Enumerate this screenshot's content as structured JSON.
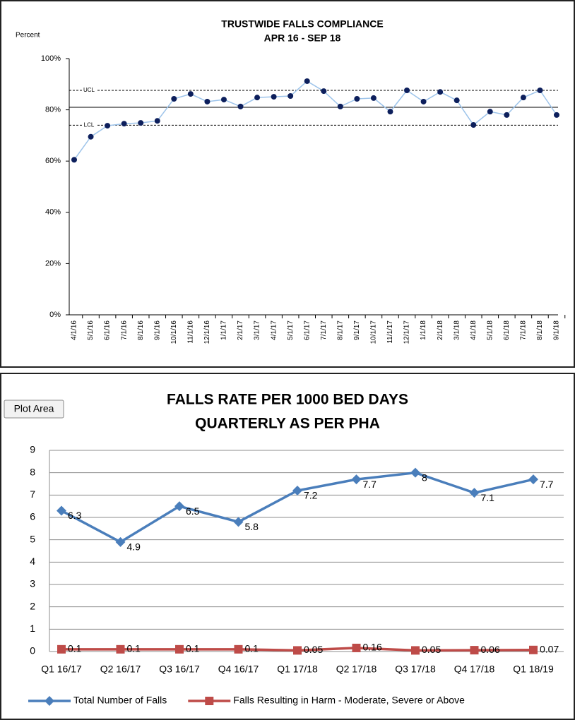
{
  "chart_data": [
    {
      "type": "line",
      "title": "TRUSTWIDE FALLS COMPLIANCE",
      "subtitle": "APR 16 - SEP 18",
      "y_label": "Percent",
      "categories": [
        "4/1/16",
        "5/1/16",
        "6/1/16",
        "7/1/16",
        "8/1/16",
        "9/1/16",
        "10/1/16",
        "11/1/16",
        "12/1/16",
        "1/1/17",
        "2/1/17",
        "3/1/17",
        "4/1/17",
        "5/1/17",
        "6/1/17",
        "7/1/17",
        "8/1/17",
        "9/1/17",
        "10/1/17",
        "11/1/17",
        "12/1/17",
        "1/1/18",
        "2/1/18",
        "3/1/18",
        "4/1/18",
        "5/1/18",
        "6/1/18",
        "7/1/18",
        "8/1/18",
        "9/1/18"
      ],
      "series": [
        {
          "color": "#9cc3ea",
          "marker_color": "#0d1f5c",
          "marker": "circle",
          "values": [
            60.5,
            69.5,
            73.8,
            74.6,
            74.9,
            75.7,
            84.3,
            86.2,
            83.2,
            84,
            81.3,
            84.8,
            85.1,
            85.4,
            91.2,
            87.3,
            81.3,
            84.3,
            84.6,
            79.3,
            87.6,
            83.2,
            87,
            83.7,
            74.1,
            79.3,
            78,
            84.8,
            87.6,
            78
          ]
        }
      ],
      "reference_lines": [
        {
          "label": "UCL",
          "value": 87.6,
          "style": "dashed"
        },
        {
          "label": "LCL",
          "value": 74,
          "style": "dashed"
        },
        {
          "value": 81,
          "style": "solid"
        }
      ],
      "ylim": [
        0,
        100
      ],
      "yticks": [
        {
          "value": 0,
          "label": "0%"
        },
        {
          "value": 20,
          "label": "20%"
        },
        {
          "value": 40,
          "label": "40%"
        },
        {
          "value": 60,
          "label": "60%"
        },
        {
          "value": 80,
          "label": "80%"
        },
        {
          "value": 100,
          "label": "100%"
        }
      ],
      "grid": false,
      "data_labels": false
    },
    {
      "type": "line",
      "title": "FALLS RATE PER 1000 BED DAYS",
      "subtitle": "QUARTERLY AS PER PHA",
      "categories": [
        "Q1 16/17",
        "Q2 16/17",
        "Q3 16/17",
        "Q4 16/17",
        "Q1 17/18",
        "Q2 17/18",
        "Q3 17/18",
        "Q4 17/18",
        "Q1 18/19"
      ],
      "series": [
        {
          "name": "Total Number of Falls",
          "color": "#4a7ebb",
          "marker_color": "#4a7ebb",
          "marker": "diamond",
          "values": [
            6.3,
            4.9,
            6.5,
            5.8,
            7.2,
            7.7,
            8,
            7.1,
            7.7
          ]
        },
        {
          "name": "Falls Resulting in Harm - Moderate, Severe or Above",
          "color": "#be4b48",
          "marker_color": "#be4b48",
          "marker": "square",
          "values": [
            0.1,
            0.1,
            0.1,
            0.1,
            0.05,
            0.16,
            0.05,
            0.06,
            0.07
          ]
        }
      ],
      "ylim": [
        0,
        9
      ],
      "yticks": [
        0,
        1,
        2,
        3,
        4,
        5,
        6,
        7,
        8,
        9
      ],
      "grid": true,
      "data_labels": true,
      "legend": "bottom"
    }
  ],
  "tooltip": "Plot Area"
}
